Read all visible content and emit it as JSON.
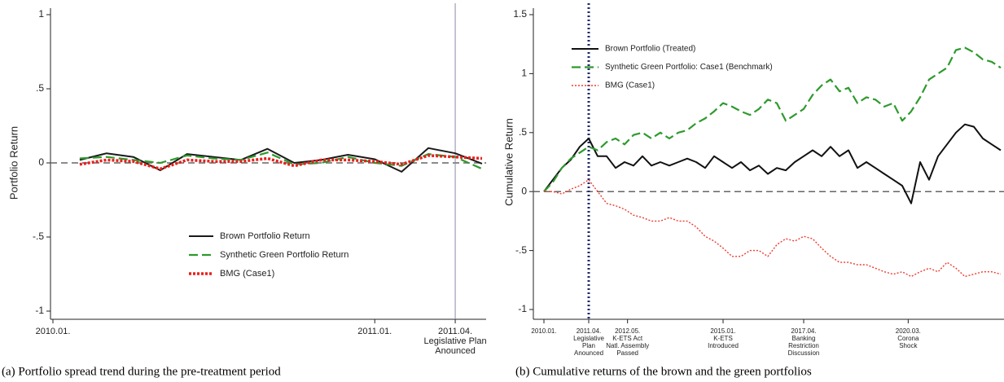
{
  "chart_data": [
    {
      "type": "line",
      "caption": "(a) Portfolio spread trend during the pre-treatment period",
      "ylabel": "Portfolio Return",
      "x": [
        "2010.02.",
        "2010.03.",
        "2010.04.",
        "2010.05.",
        "2010.06.",
        "2010.07.",
        "2010.08.",
        "2010.09.",
        "2010.10.",
        "2010.11.",
        "2010.12.",
        "2011.01.",
        "2011.02.",
        "2011.03.",
        "2011.04.",
        "2011.05."
      ],
      "xlim": [
        "2010.01.",
        "2011.05."
      ],
      "xticks": [
        "2010.01.",
        "2011.01.",
        {
          "value": "2011.04.",
          "note": [
            "Legislative Plan",
            "Anounced"
          ]
        }
      ],
      "ylim": [
        -1,
        1
      ],
      "yticks": [
        -1,
        {
          "value": -0.5,
          "label": "-.5"
        },
        0,
        {
          "value": 0.5,
          "label": ".5"
        },
        1
      ],
      "zero_line": true,
      "vline": {
        "x": "2011.04.",
        "color": "#8a8aa8",
        "style": "solid"
      },
      "legend": "lower center",
      "series": [
        {
          "name": "Brown Portfolio Return",
          "color": "#1a1a1a",
          "dash": "solid",
          "values": [
            0.02,
            0.065,
            0.04,
            -0.05,
            0.06,
            0.04,
            0.02,
            0.095,
            0.0,
            0.02,
            0.055,
            0.025,
            -0.06,
            0.1,
            0.065,
            -0.005
          ]
        },
        {
          "name": "Synthetic Green Portfolio Return",
          "color": "#2e9a2e",
          "dash": "dashed",
          "values": [
            0.03,
            0.04,
            0.02,
            0.0,
            0.05,
            0.03,
            0.02,
            0.07,
            -0.01,
            0.0,
            0.04,
            0.0,
            -0.02,
            0.06,
            0.04,
            -0.04
          ]
        },
        {
          "name": "BMG (Case1)",
          "color": "#e8201c",
          "dash": "dotted",
          "values": [
            -0.01,
            0.02,
            0.01,
            -0.04,
            0.02,
            0.01,
            0.01,
            0.03,
            -0.02,
            0.02,
            0.02,
            0.01,
            -0.01,
            0.05,
            0.04,
            0.03
          ]
        }
      ]
    },
    {
      "type": "line",
      "caption": "(b) Cumulative returns of the brown and the green portfolios",
      "ylabel": "Cumulative Return",
      "x": [
        "2010.01.",
        "2010.04.",
        "2010.07.",
        "2010.10.",
        "2011.01.",
        "2011.04.",
        "2011.07.",
        "2011.10.",
        "2012.01.",
        "2012.04.",
        "2012.07.",
        "2012.10.",
        "2013.01.",
        "2013.04.",
        "2013.07.",
        "2013.10.",
        "2014.01.",
        "2014.04.",
        "2014.07.",
        "2014.10.",
        "2015.01.",
        "2015.04.",
        "2015.07.",
        "2015.10.",
        "2016.01.",
        "2016.04.",
        "2016.07.",
        "2016.10.",
        "2017.01.",
        "2017.04.",
        "2017.07.",
        "2017.10.",
        "2018.01.",
        "2018.04.",
        "2018.07.",
        "2018.10.",
        "2019.01.",
        "2019.04.",
        "2019.07.",
        "2019.10.",
        "2020.01.",
        "2020.04.",
        "2020.07.",
        "2020.10.",
        "2021.01.",
        "2021.04.",
        "2021.07.",
        "2021.10.",
        "2022.01.",
        "2022.04.",
        "2022.07.",
        "2022.10."
      ],
      "xlim": [
        "2010.01.",
        "2022.10."
      ],
      "xticks": [
        "2010.01.",
        {
          "value": "2011.04.",
          "note": [
            "Legislative",
            "Plan",
            "Anounced"
          ]
        },
        {
          "value": "2012.05.",
          "note": [
            "K-ETS Act",
            "Natl. Assembly",
            "Passed"
          ]
        },
        {
          "value": "2015.01.",
          "note": [
            "K-ETS",
            "Introduced"
          ]
        },
        {
          "value": "2017.04.",
          "note": [
            "Banking",
            "Restriction",
            "Discussion"
          ]
        },
        {
          "value": "2020.03.",
          "note": [
            "Corona",
            "Shock"
          ]
        }
      ],
      "ylim": [
        -1,
        1.5
      ],
      "yticks": [
        -1,
        {
          "value": -0.5,
          "label": "-.5"
        },
        0,
        {
          "value": 0.5,
          "label": ".5"
        },
        1,
        1.5
      ],
      "zero_line": true,
      "vline": {
        "x": "2011.04.",
        "color": "#1f2a6b",
        "style": "dotted"
      },
      "legend": "upper left",
      "series": [
        {
          "name": "Brown Portfolio (Treated)",
          "color": "#111111",
          "dash": "solid",
          "values": [
            0,
            0.1,
            0.2,
            0.27,
            0.38,
            0.45,
            0.3,
            0.3,
            0.2,
            0.25,
            0.22,
            0.3,
            0.22,
            0.25,
            0.22,
            0.25,
            0.28,
            0.25,
            0.2,
            0.3,
            0.25,
            0.2,
            0.25,
            0.18,
            0.22,
            0.15,
            0.2,
            0.18,
            0.25,
            0.3,
            0.35,
            0.3,
            0.38,
            0.3,
            0.35,
            0.2,
            0.25,
            0.2,
            0.15,
            0.1,
            0.05,
            -0.1,
            0.25,
            0.1,
            0.3,
            0.4,
            0.5,
            0.57,
            0.55,
            0.45,
            0.4,
            0.35
          ]
        },
        {
          "name": "Synthetic Green Portfolio: Case1 (Benchmark)",
          "color": "#2e9a2e",
          "dash": "dashed",
          "values": [
            0,
            0.08,
            0.2,
            0.28,
            0.33,
            0.38,
            0.35,
            0.42,
            0.45,
            0.4,
            0.48,
            0.5,
            0.45,
            0.5,
            0.45,
            0.5,
            0.52,
            0.58,
            0.62,
            0.68,
            0.75,
            0.72,
            0.68,
            0.65,
            0.7,
            0.78,
            0.75,
            0.6,
            0.65,
            0.7,
            0.82,
            0.9,
            0.95,
            0.85,
            0.88,
            0.75,
            0.8,
            0.78,
            0.72,
            0.75,
            0.6,
            0.68,
            0.8,
            0.95,
            1.0,
            1.05,
            1.2,
            1.22,
            1.18,
            1.12,
            1.1,
            1.05
          ]
        },
        {
          "name": "BMG (Case1)",
          "color": "#f03a2e",
          "dash": "fine-dotted",
          "values": [
            0,
            0,
            -0.02,
            0.02,
            0.05,
            0.1,
            0,
            -0.1,
            -0.12,
            -0.15,
            -0.2,
            -0.22,
            -0.25,
            -0.25,
            -0.22,
            -0.25,
            -0.25,
            -0.3,
            -0.38,
            -0.42,
            -0.48,
            -0.55,
            -0.55,
            -0.5,
            -0.5,
            -0.55,
            -0.45,
            -0.4,
            -0.42,
            -0.38,
            -0.4,
            -0.48,
            -0.55,
            -0.6,
            -0.6,
            -0.62,
            -0.62,
            -0.65,
            -0.68,
            -0.7,
            -0.68,
            -0.72,
            -0.68,
            -0.65,
            -0.68,
            -0.6,
            -0.65,
            -0.72,
            -0.7,
            -0.68,
            -0.68,
            -0.7
          ]
        }
      ]
    }
  ]
}
